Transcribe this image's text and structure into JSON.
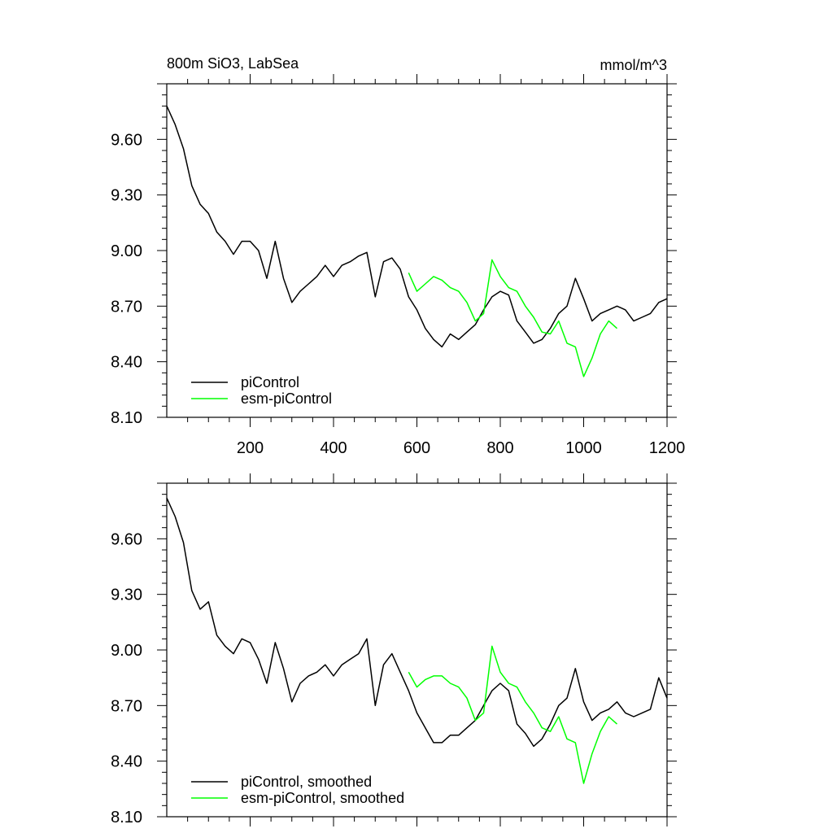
{
  "chart_data": [
    {
      "type": "line",
      "title": "800m SiO3, LabSea",
      "units": "mmol/m^3",
      "xlabel": "",
      "ylabel": "",
      "xlim": [
        0,
        1200
      ],
      "ylim": [
        8.1,
        9.9
      ],
      "xticks": [
        "200",
        "400",
        "600",
        "800",
        "1000",
        "1200"
      ],
      "yticks": [
        "8.10",
        "8.40",
        "8.70",
        "9.00",
        "9.30",
        "9.60"
      ],
      "legend_position": "bottom-left",
      "series": [
        {
          "name": "piControl",
          "color": "#000000",
          "x": [
            0,
            20,
            40,
            60,
            80,
            100,
            120,
            140,
            160,
            180,
            200,
            220,
            240,
            260,
            280,
            300,
            320,
            340,
            360,
            380,
            400,
            420,
            440,
            460,
            480,
            500,
            520,
            540,
            560,
            580,
            600,
            620,
            640,
            660,
            680,
            700,
            720,
            740,
            760,
            780,
            800,
            820,
            840,
            860,
            880,
            900,
            920,
            940,
            960,
            980,
            1000,
            1020,
            1040,
            1060,
            1080,
            1100,
            1120,
            1140,
            1160,
            1180,
            1200
          ],
          "values": [
            9.78,
            9.68,
            9.55,
            9.35,
            9.25,
            9.2,
            9.1,
            9.05,
            8.98,
            9.05,
            9.05,
            9.0,
            8.85,
            9.05,
            8.85,
            8.72,
            8.78,
            8.82,
            8.86,
            8.92,
            8.86,
            8.92,
            8.94,
            8.97,
            8.99,
            8.75,
            8.94,
            8.96,
            8.9,
            8.75,
            8.68,
            8.58,
            8.52,
            8.48,
            8.55,
            8.52,
            8.56,
            8.6,
            8.68,
            8.75,
            8.78,
            8.76,
            8.62,
            8.56,
            8.5,
            8.52,
            8.58,
            8.66,
            8.7,
            8.85,
            8.74,
            8.62,
            8.66,
            8.68,
            8.7,
            8.68,
            8.62,
            8.64,
            8.66,
            8.72,
            8.74
          ]
        },
        {
          "name": "esm-piControl",
          "color": "#00ff00",
          "x": [
            580,
            600,
            620,
            640,
            660,
            680,
            700,
            720,
            740,
            760,
            780,
            800,
            820,
            840,
            860,
            880,
            900,
            920,
            940,
            960,
            980,
            1000,
            1020,
            1040,
            1060,
            1080
          ],
          "values": [
            8.88,
            8.78,
            8.82,
            8.86,
            8.84,
            8.8,
            8.78,
            8.72,
            8.62,
            8.66,
            8.95,
            8.86,
            8.8,
            8.78,
            8.7,
            8.64,
            8.56,
            8.55,
            8.62,
            8.5,
            8.48,
            8.32,
            8.42,
            8.55,
            8.62,
            8.58
          ]
        }
      ]
    },
    {
      "type": "line",
      "title": "",
      "xlim": [
        0,
        1200
      ],
      "ylim": [
        8.1,
        9.9
      ],
      "yticks": [
        "8.10",
        "8.40",
        "8.70",
        "9.00",
        "9.30",
        "9.60"
      ],
      "legend_position": "bottom-left",
      "series": [
        {
          "name": "piControl, smoothed",
          "color": "#000000",
          "x": [
            0,
            20,
            40,
            60,
            80,
            100,
            120,
            140,
            160,
            180,
            200,
            220,
            240,
            260,
            280,
            300,
            320,
            340,
            360,
            380,
            400,
            420,
            440,
            460,
            480,
            500,
            520,
            540,
            560,
            580,
            600,
            620,
            640,
            660,
            680,
            700,
            720,
            740,
            760,
            780,
            800,
            820,
            840,
            860,
            880,
            900,
            920,
            940,
            960,
            980,
            1000,
            1020,
            1040,
            1060,
            1080,
            1100,
            1120,
            1140,
            1160,
            1180,
            1200
          ],
          "values": [
            9.82,
            9.72,
            9.58,
            9.32,
            9.22,
            9.26,
            9.08,
            9.02,
            8.98,
            9.06,
            9.04,
            8.95,
            8.82,
            9.04,
            8.9,
            8.72,
            8.82,
            8.86,
            8.88,
            8.92,
            8.86,
            8.92,
            8.95,
            8.98,
            9.06,
            8.7,
            8.92,
            8.98,
            8.88,
            8.78,
            8.66,
            8.58,
            8.5,
            8.5,
            8.54,
            8.54,
            8.58,
            8.62,
            8.7,
            8.78,
            8.82,
            8.78,
            8.6,
            8.55,
            8.48,
            8.52,
            8.6,
            8.7,
            8.74,
            8.9,
            8.72,
            8.62,
            8.66,
            8.68,
            8.72,
            8.66,
            8.64,
            8.66,
            8.68,
            8.85,
            8.74
          ]
        },
        {
          "name": "esm-piControl, smoothed",
          "color": "#00ff00",
          "x": [
            580,
            600,
            620,
            640,
            660,
            680,
            700,
            720,
            740,
            760,
            780,
            800,
            820,
            840,
            860,
            880,
            900,
            920,
            940,
            960,
            980,
            1000,
            1020,
            1040,
            1060,
            1080
          ],
          "values": [
            8.88,
            8.8,
            8.84,
            8.86,
            8.86,
            8.82,
            8.8,
            8.74,
            8.62,
            8.66,
            9.02,
            8.88,
            8.82,
            8.8,
            8.72,
            8.66,
            8.58,
            8.56,
            8.64,
            8.52,
            8.5,
            8.28,
            8.44,
            8.56,
            8.64,
            8.6
          ]
        }
      ]
    }
  ]
}
